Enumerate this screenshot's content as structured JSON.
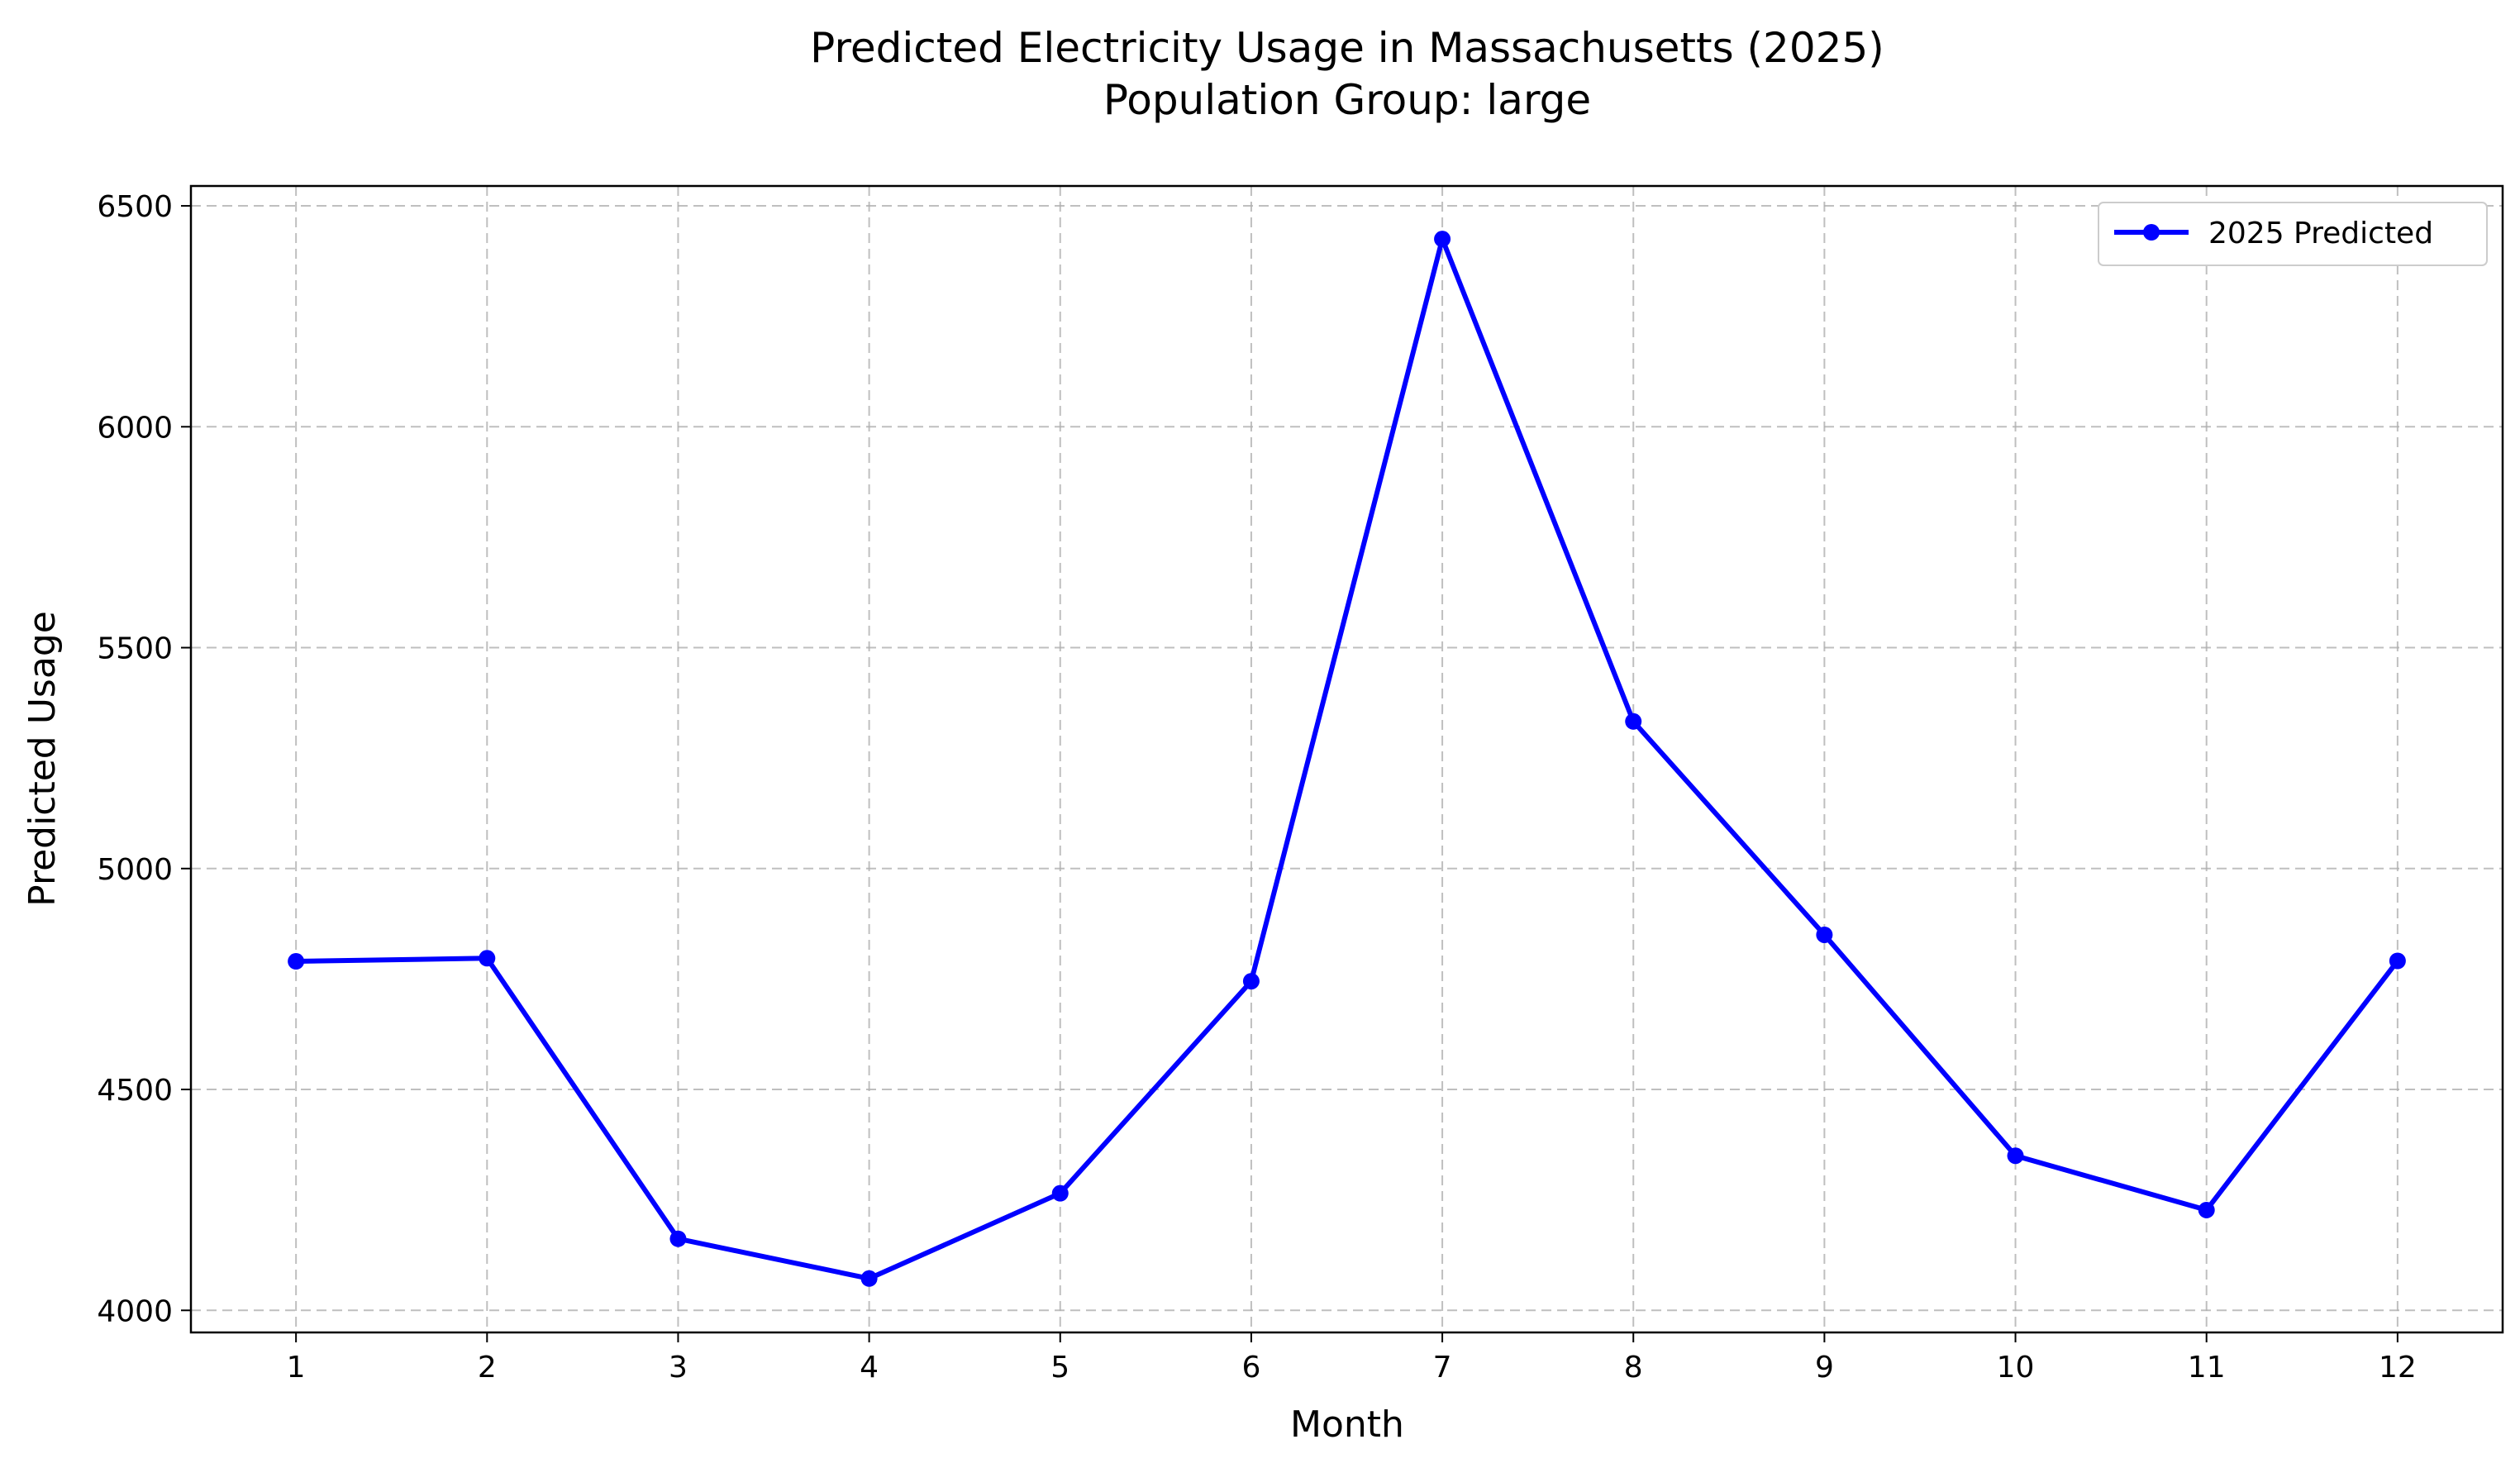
{
  "chart_data": {
    "type": "line",
    "title": "Predicted Electricity Usage in Massachusetts (2025)",
    "subtitle": "Population Group: large",
    "xlabel": "Month",
    "ylabel": "Predicted Usage",
    "x": [
      1,
      2,
      3,
      4,
      5,
      6,
      7,
      8,
      9,
      10,
      11,
      12
    ],
    "series": [
      {
        "name": "2025 Predicted",
        "values": [
          4790,
          4797,
          4162,
          4072,
          4265,
          4745,
          6425,
          5333,
          4850,
          4350,
          4227,
          4791
        ],
        "color": "#0000ff",
        "marker": "circle"
      }
    ],
    "xticks": [
      1,
      2,
      3,
      4,
      5,
      6,
      7,
      8,
      9,
      10,
      11,
      12
    ],
    "yticks": [
      4000,
      4500,
      5000,
      5500,
      6000,
      6500
    ],
    "xlim": [
      0.45,
      12.55
    ],
    "ylim": [
      3950,
      6545
    ],
    "grid": true,
    "legend_position": "top-right"
  }
}
